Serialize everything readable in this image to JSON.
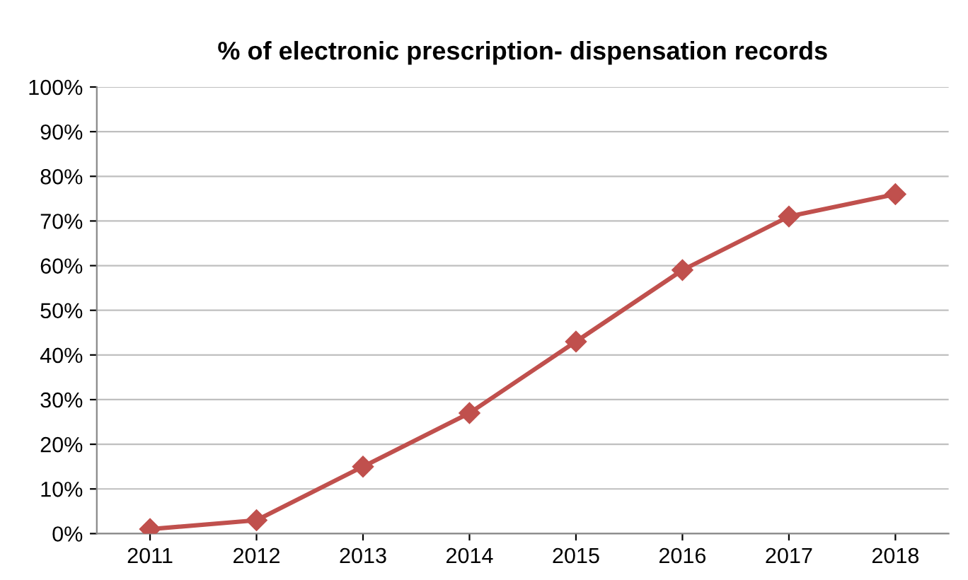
{
  "chart_data": {
    "type": "line",
    "title": "% of electronic prescription- dispensation records",
    "categories": [
      "2011",
      "2012",
      "2013",
      "2014",
      "2015",
      "2016",
      "2017",
      "2018"
    ],
    "series": [
      {
        "color": "#c0504d",
        "values": [
          1,
          3,
          15,
          27,
          43,
          59,
          71,
          76
        ]
      }
    ],
    "ylim": [
      0,
      100
    ],
    "yticks": [
      {
        "value": 0,
        "label": "0%"
      },
      {
        "value": 10,
        "label": "10%"
      },
      {
        "value": 20,
        "label": "20%"
      },
      {
        "value": 30,
        "label": "30%"
      },
      {
        "value": 40,
        "label": "40%"
      },
      {
        "value": 50,
        "label": "50%"
      },
      {
        "value": 60,
        "label": "60%"
      },
      {
        "value": 70,
        "label": "70%"
      },
      {
        "value": 80,
        "label": "80%"
      },
      {
        "value": 90,
        "label": "90%"
      },
      {
        "value": 100,
        "label": "100%"
      }
    ],
    "grid": "y",
    "marker": "diamond",
    "line_style": "solid",
    "legend": false
  }
}
